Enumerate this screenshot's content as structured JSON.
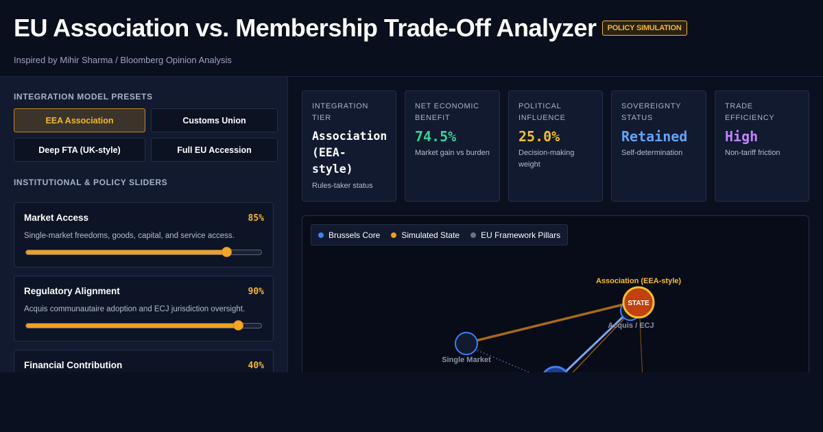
{
  "header": {
    "title": "EU Association vs. Membership Trade-Off Analyzer",
    "badge": "POLICY SIMULATION",
    "subtitle": "Inspired by Mihir Sharma / Bloomberg Opinion Analysis"
  },
  "sidebar": {
    "presets_label": "INTEGRATION MODEL PRESETS",
    "presets": [
      {
        "label": "EEA Association",
        "active": true
      },
      {
        "label": "Customs Union",
        "active": false
      },
      {
        "label": "Deep FTA (UK-style)",
        "active": false
      },
      {
        "label": "Full EU Accession",
        "active": false
      }
    ],
    "sliders_label": "INSTITUTIONAL & POLICY SLIDERS",
    "sliders": [
      {
        "title": "Market Access",
        "value": 85,
        "value_label": "85%",
        "description": "Single-market freedoms, goods, capital, and service access."
      },
      {
        "title": "Regulatory Alignment",
        "value": 90,
        "value_label": "90%",
        "description": "Acquis communautaire adoption and ECJ jurisdiction oversight."
      },
      {
        "title": "Financial Contribution",
        "value": 40,
        "value_label": "40%",
        "description": ""
      }
    ]
  },
  "metrics": [
    {
      "label": "INTEGRATION TIER",
      "value": "Association (EEA-style)",
      "sub": "Rules-taker status",
      "color": "#ffffff"
    },
    {
      "label": "NET ECONOMIC BENEFIT",
      "value": "74.5%",
      "sub": "Market gain vs burden",
      "color": "#34d399"
    },
    {
      "label": "POLITICAL INFLUENCE",
      "value": "25.0%",
      "sub": "Decision-making weight",
      "color": "#fbbf24"
    },
    {
      "label": "SOVEREIGNTY STATUS",
      "value": "Retained",
      "sub": "Self-determination",
      "color": "#60a5fa"
    },
    {
      "label": "TRADE EFFICIENCY",
      "value": "High",
      "sub": "Non-tariff friction",
      "color": "#c084fc"
    }
  ],
  "graph": {
    "legend": [
      {
        "label": "Brussels Core",
        "color": "#3b82f6"
      },
      {
        "label": "Simulated State",
        "color": "#f59e0b"
      },
      {
        "label": "EU Framework Pillars",
        "color": "#6b7280"
      }
    ],
    "state_node_text": "STATE",
    "state_label": "Association (EEA-style)",
    "pillar_labels": [
      "Acquis / ECJ",
      "Single Market"
    ]
  }
}
